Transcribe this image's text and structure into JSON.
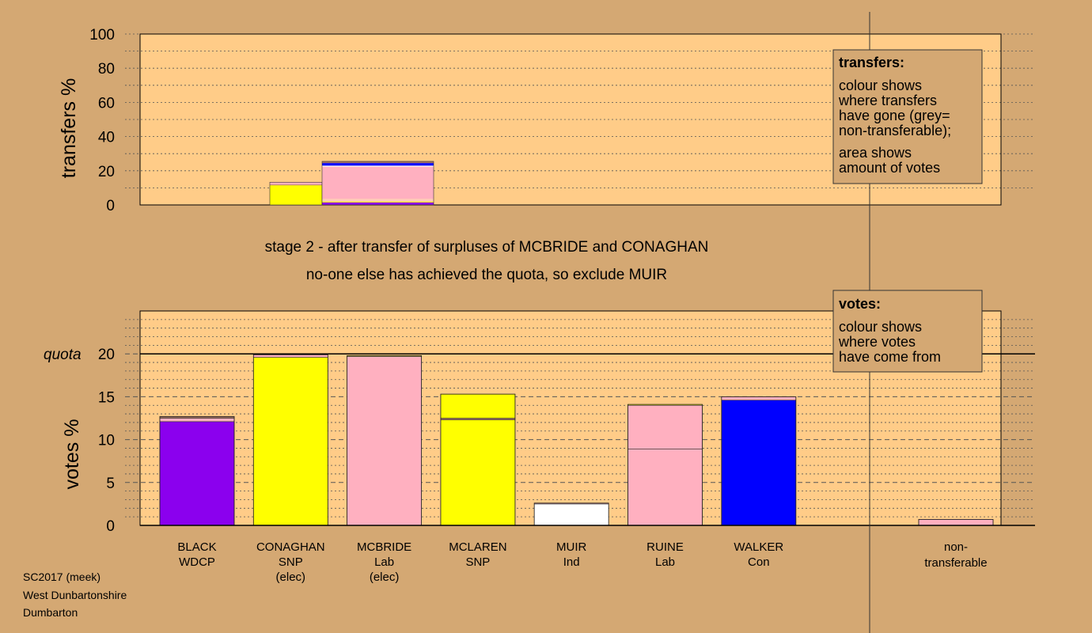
{
  "footer": [
    "SC2017 (meek)",
    "West Dunbartonshire",
    "Dumbarton"
  ],
  "stage": {
    "line1": "stage 2 - after transfer of surpluses of MCBRIDE and CONAGHAN",
    "line2": "no-one else has achieved the quota, so exclude MUIR"
  },
  "legends": {
    "transfers": {
      "title": "transfers:",
      "lines": [
        "colour shows",
        "where transfers",
        "have gone (grey=",
        "non-transferable);",
        "area shows",
        "amount of votes"
      ]
    },
    "votes": {
      "title": "votes:",
      "lines": [
        "colour shows",
        "where votes",
        "have come from"
      ]
    }
  },
  "colors": {
    "background": "#d4a873",
    "panel": "#ffcc88",
    "BLACK": "#8b00ee",
    "SNP": "#ffff00",
    "Lab": "#ffb0c0",
    "Ind": "#ffffff",
    "Con": "#0000ff",
    "other": "#a07060"
  },
  "chart_data": [
    {
      "type": "bar",
      "ylabel": "transfers %",
      "ylim": [
        0,
        100
      ],
      "yticks": [
        0,
        20,
        40,
        60,
        80,
        100
      ],
      "bars": [
        {
          "source": "CONAGHAN",
          "width_share": 0.4,
          "segments": [
            {
              "to": "MCLAREN",
              "color": "#ffff00",
              "value": 11.5
            },
            {
              "to": "other",
              "color": "#a07060",
              "value": 0.4
            },
            {
              "to": "RUINE",
              "color": "#ffb0c0",
              "value": 0.6
            },
            {
              "to": "MCBRIDE",
              "color": "#ffb0c0",
              "value": 0.8
            }
          ]
        },
        {
          "source": "MCBRIDE",
          "width_share": 0.6,
          "segments": [
            {
              "to": "BLACK",
              "color": "#8b00ee",
              "value": 1.5
            },
            {
              "to": "MCLAREN",
              "color": "#ffff00",
              "value": 0.5
            },
            {
              "to": "non-transferable",
              "color": "#ffccbb",
              "value": 1.6
            },
            {
              "to": "RUINE",
              "color": "#ffb0c0",
              "value": 18.8
            },
            {
              "to": "MUIR",
              "color": "#ffffff",
              "value": 0.6
            },
            {
              "to": "WALKER",
              "color": "#0000ff",
              "value": 1.5
            },
            {
              "to": "other",
              "color": "#a07060",
              "value": 1.0
            }
          ]
        }
      ]
    },
    {
      "type": "bar",
      "ylabel": "votes %",
      "ylim": [
        0,
        25
      ],
      "yticks": [
        0,
        5,
        10,
        15,
        20
      ],
      "quota": 20,
      "quota_label": "quota",
      "candidates": [
        {
          "name": "BLACK",
          "party": "WDCP",
          "note": "",
          "segments": [
            {
              "color": "#8b00ee",
              "value": 12.1
            },
            {
              "color": "#ffb0c0",
              "value": 0.4
            },
            {
              "color": "#a07060",
              "value": 0.2
            }
          ]
        },
        {
          "name": "CONAGHAN",
          "party": "SNP",
          "note": "(elec)",
          "segments": [
            {
              "color": "#ffff00",
              "value": 19.6
            },
            {
              "color": "#ffb0c0",
              "value": 0.3
            }
          ]
        },
        {
          "name": "MCBRIDE",
          "party": "Lab",
          "note": "(elec)",
          "segments": [
            {
              "color": "#ffb0c0",
              "value": 19.7
            },
            {
              "color": "#ffff00",
              "value": 0.1
            }
          ]
        },
        {
          "name": "MCLAREN",
          "party": "SNP",
          "note": "",
          "segments": [
            {
              "color": "#ffff00",
              "value": 12.3
            },
            {
              "color": "#a07060",
              "value": 0.2
            },
            {
              "color": "#ffff00",
              "value": 2.8
            }
          ]
        },
        {
          "name": "MUIR",
          "party": "Ind",
          "note": "",
          "segments": [
            {
              "color": "#ffffff",
              "value": 2.5
            },
            {
              "color": "#ffb0c0",
              "value": 0.1
            }
          ]
        },
        {
          "name": "RUINE",
          "party": "Lab",
          "note": "",
          "segments": [
            {
              "color": "#ffb0c0",
              "value": 8.9
            },
            {
              "color": "#ffb0c0",
              "value": 5.1
            },
            {
              "color": "#ffff00",
              "value": 0.1
            }
          ]
        },
        {
          "name": "WALKER",
          "party": "Con",
          "note": "",
          "segments": [
            {
              "color": "#0000ff",
              "value": 14.6
            },
            {
              "color": "#ffb0c0",
              "value": 0.4
            }
          ]
        },
        {
          "name": "non-transferable",
          "party": "",
          "note": "",
          "segments": [
            {
              "color": "#ffb0c0",
              "value": 0.7
            }
          ]
        }
      ]
    }
  ]
}
